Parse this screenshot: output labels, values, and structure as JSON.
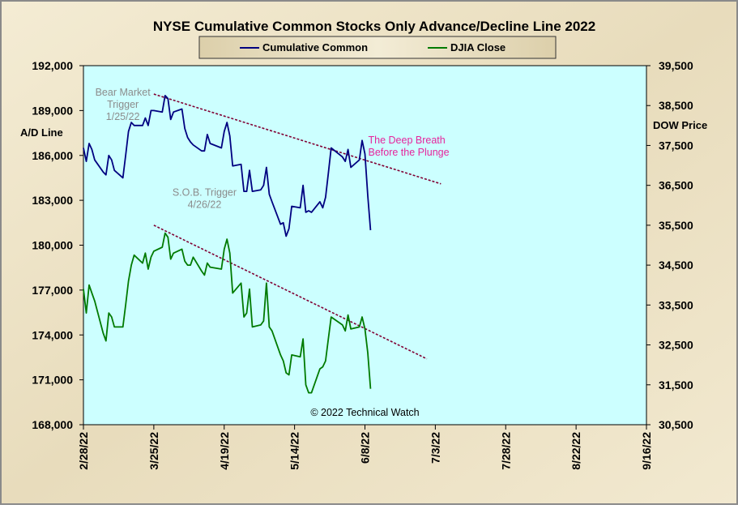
{
  "chart_data": {
    "type": "line",
    "title": "NYSE Cumulative  Common Stocks Only Advance/Decline  Line 2022",
    "ylabel_left": "A/D Line",
    "ylabel_right": "DOW  Price",
    "ylim_left": [
      168000,
      192000
    ],
    "ylim_right": [
      30500,
      39500
    ],
    "left_ticks": [
      "192,000",
      "189,000",
      "186,000",
      "183,000",
      "180,000",
      "177,000",
      "174,000",
      "171,000",
      "168,000"
    ],
    "right_ticks": [
      "39,500",
      "38,500",
      "37,500",
      "36,500",
      "35,500",
      "34,500",
      "33,500",
      "32,500",
      "31,500",
      "30,500"
    ],
    "x_ticks": [
      "2/28/22",
      "3/25/22",
      "4/19/22",
      "5/14/22",
      "6/8/22",
      "7/3/22",
      "7/28/22",
      "8/22/22",
      "9/16/22"
    ],
    "xlim": [
      "2/28/22",
      "9/16/22"
    ],
    "grid": false,
    "legend": "top-center",
    "colors": {
      "plot_bg": "#ccffff",
      "frame_bg": "#ece2c6",
      "cumulative": "#000080",
      "djia": "#007a00",
      "trend": "#800033",
      "annotation_pink": "#e6249c",
      "annotation_gray": "#8c8c8c"
    },
    "series": [
      {
        "name": "Cumulative Common",
        "axis": "left",
        "points": [
          [
            "2/28/22",
            186500
          ],
          [
            "3/1/22",
            185600
          ],
          [
            "3/2/22",
            186800
          ],
          [
            "3/3/22",
            186400
          ],
          [
            "3/4/22",
            185700
          ],
          [
            "3/7/22",
            184900
          ],
          [
            "3/8/22",
            184700
          ],
          [
            "3/9/22",
            186000
          ],
          [
            "3/10/22",
            185700
          ],
          [
            "3/11/22",
            185000
          ],
          [
            "3/14/22",
            184500
          ],
          [
            "3/15/22",
            186000
          ],
          [
            "3/16/22",
            187600
          ],
          [
            "3/17/22",
            188200
          ],
          [
            "3/18/22",
            188000
          ],
          [
            "3/21/22",
            188000
          ],
          [
            "3/22/22",
            188500
          ],
          [
            "3/23/22",
            188000
          ],
          [
            "3/24/22",
            189000
          ],
          [
            "3/25/22",
            189000
          ],
          [
            "3/28/22",
            188900
          ],
          [
            "3/29/22",
            190000
          ],
          [
            "3/30/22",
            189800
          ],
          [
            "3/31/22",
            188400
          ],
          [
            "4/1/22",
            188900
          ],
          [
            "4/4/22",
            189100
          ],
          [
            "4/5/22",
            187800
          ],
          [
            "4/6/22",
            187200
          ],
          [
            "4/7/22",
            186900
          ],
          [
            "4/8/22",
            186700
          ],
          [
            "4/11/22",
            186300
          ],
          [
            "4/12/22",
            186300
          ],
          [
            "4/13/22",
            187400
          ],
          [
            "4/14/22",
            186800
          ],
          [
            "4/18/22",
            186500
          ],
          [
            "4/19/22",
            187600
          ],
          [
            "4/20/22",
            188200
          ],
          [
            "4/21/22",
            187300
          ],
          [
            "4/22/22",
            185300
          ],
          [
            "4/25/22",
            185400
          ],
          [
            "4/26/22",
            183600
          ],
          [
            "4/27/22",
            183600
          ],
          [
            "4/28/22",
            185000
          ],
          [
            "4/29/22",
            183600
          ],
          [
            "5/2/22",
            183700
          ],
          [
            "5/3/22",
            184000
          ],
          [
            "5/4/22",
            185200
          ],
          [
            "5/5/22",
            183400
          ],
          [
            "5/6/22",
            182900
          ],
          [
            "5/9/22",
            181400
          ],
          [
            "5/10/22",
            181500
          ],
          [
            "5/11/22",
            180600
          ],
          [
            "5/12/22",
            181100
          ],
          [
            "5/13/22",
            182600
          ],
          [
            "5/16/22",
            182500
          ],
          [
            "5/17/22",
            184000
          ],
          [
            "5/18/22",
            182200
          ],
          [
            "5/19/22",
            182300
          ],
          [
            "5/20/22",
            182200
          ],
          [
            "5/23/22",
            182900
          ],
          [
            "5/24/22",
            182500
          ],
          [
            "5/25/22",
            183200
          ],
          [
            "5/26/22",
            184800
          ],
          [
            "5/27/22",
            186500
          ],
          [
            "5/31/22",
            185900
          ],
          [
            "6/1/22",
            185600
          ],
          [
            "6/2/22",
            186400
          ],
          [
            "6/3/22",
            185200
          ],
          [
            "6/6/22",
            185700
          ],
          [
            "6/7/22",
            187000
          ],
          [
            "6/8/22",
            186100
          ],
          [
            "6/9/22",
            183300
          ],
          [
            "6/10/22",
            181000
          ]
        ]
      },
      {
        "name": "DJIA Close",
        "axis": "right",
        "points": [
          [
            "2/28/22",
            33900
          ],
          [
            "3/1/22",
            33300
          ],
          [
            "3/2/22",
            34000
          ],
          [
            "3/3/22",
            33800
          ],
          [
            "3/4/22",
            33600
          ],
          [
            "3/7/22",
            32800
          ],
          [
            "3/8/22",
            32600
          ],
          [
            "3/9/22",
            33300
          ],
          [
            "3/10/22",
            33200
          ],
          [
            "3/11/22",
            32950
          ],
          [
            "3/14/22",
            32950
          ],
          [
            "3/15/22",
            33500
          ],
          [
            "3/16/22",
            34100
          ],
          [
            "3/17/22",
            34500
          ],
          [
            "3/18/22",
            34750
          ],
          [
            "3/21/22",
            34550
          ],
          [
            "3/22/22",
            34800
          ],
          [
            "3/23/22",
            34400
          ],
          [
            "3/24/22",
            34700
          ],
          [
            "3/25/22",
            34850
          ],
          [
            "3/28/22",
            34950
          ],
          [
            "3/29/22",
            35300
          ],
          [
            "3/30/22",
            35200
          ],
          [
            "3/31/22",
            34650
          ],
          [
            "4/1/22",
            34800
          ],
          [
            "4/4/22",
            34900
          ],
          [
            "4/5/22",
            34600
          ],
          [
            "4/6/22",
            34500
          ],
          [
            "4/7/22",
            34500
          ],
          [
            "4/8/22",
            34700
          ],
          [
            "4/11/22",
            34350
          ],
          [
            "4/12/22",
            34250
          ],
          [
            "4/13/22",
            34550
          ],
          [
            "4/14/22",
            34450
          ],
          [
            "4/18/22",
            34400
          ],
          [
            "4/19/22",
            34900
          ],
          [
            "4/20/22",
            35150
          ],
          [
            "4/21/22",
            34800
          ],
          [
            "4/22/22",
            33800
          ],
          [
            "4/25/22",
            34050
          ],
          [
            "4/26/22",
            33200
          ],
          [
            "4/27/22",
            33300
          ],
          [
            "4/28/22",
            33900
          ],
          [
            "4/29/22",
            32950
          ],
          [
            "5/2/22",
            33000
          ],
          [
            "5/3/22",
            33100
          ],
          [
            "5/4/22",
            34050
          ],
          [
            "5/5/22",
            32950
          ],
          [
            "5/6/22",
            32850
          ],
          [
            "5/9/22",
            32250
          ],
          [
            "5/10/22",
            32100
          ],
          [
            "5/11/22",
            31800
          ],
          [
            "5/12/22",
            31750
          ],
          [
            "5/13/22",
            32250
          ],
          [
            "5/16/22",
            32200
          ],
          [
            "5/17/22",
            32650
          ],
          [
            "5/18/22",
            31500
          ],
          [
            "5/19/22",
            31300
          ],
          [
            "5/20/22",
            31300
          ],
          [
            "5/23/22",
            31900
          ],
          [
            "5/24/22",
            31950
          ],
          [
            "5/25/22",
            32100
          ],
          [
            "5/26/22",
            32650
          ],
          [
            "5/27/22",
            33200
          ],
          [
            "5/31/22",
            33000
          ],
          [
            "6/1/22",
            32850
          ],
          [
            "6/2/22",
            33250
          ],
          [
            "6/3/22",
            32900
          ],
          [
            "6/6/22",
            32950
          ],
          [
            "6/7/22",
            33200
          ],
          [
            "6/8/22",
            32900
          ],
          [
            "6/9/22",
            32300
          ],
          [
            "6/10/22",
            31400
          ]
        ]
      }
    ],
    "trendlines": [
      {
        "axis": "left",
        "from": [
          "3/25/22",
          190100
        ],
        "to": [
          "7/5/22",
          184100
        ]
      },
      {
        "axis": "right",
        "from": [
          "3/25/22",
          35500
        ],
        "to": [
          "6/30/22",
          32150
        ]
      }
    ],
    "annotations": [
      {
        "lines": [
          "Bear Market",
          "Trigger",
          "1/25/22"
        ],
        "color": "gray",
        "at": [
          "3/14/22",
          190000
        ]
      },
      {
        "lines": [
          "S.O.B. Trigger",
          "4/26/22"
        ],
        "color": "gray",
        "at": [
          "4/12/22",
          183300
        ]
      },
      {
        "lines": [
          "The Deep Breath",
          "Before the Plunge"
        ],
        "color": "pink",
        "at": [
          "6/8/22",
          186800
        ]
      },
      {
        "lines": [
          "© 2022 Technical Watch"
        ],
        "color": "black",
        "at": [
          "6/8/22",
          168600
        ]
      }
    ]
  }
}
